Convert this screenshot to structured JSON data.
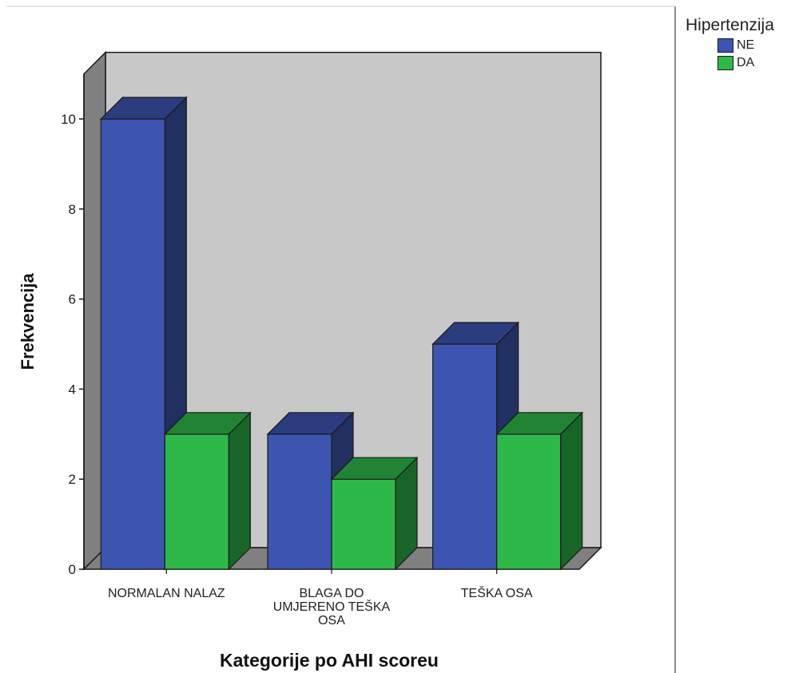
{
  "chart_data": {
    "type": "bar",
    "title": "",
    "xlabel": "Kategorije po AHI scoreu",
    "ylabel": "Frekvencija",
    "categories": [
      "NORMALAN NALAZ",
      "BLAGA DO UMJERENO TEŠKA OSA",
      "TEŠKA OSA"
    ],
    "category_lines": [
      [
        "NORMALAN NALAZ"
      ],
      [
        "BLAGA DO",
        "UMJERENO TEŠKA",
        "OSA"
      ],
      [
        "TEŠKA OSA"
      ]
    ],
    "series": [
      {
        "name": "NE",
        "values": [
          10,
          3,
          5
        ],
        "color": "#3d55b0"
      },
      {
        "name": "DA",
        "values": [
          3,
          2,
          3
        ],
        "color": "#2eb84a"
      }
    ],
    "yticks": [
      "0",
      "2",
      "4",
      "6",
      "8",
      "10"
    ],
    "ylim": [
      0,
      11
    ],
    "grid": false,
    "legend": {
      "title": "Hipertenzija",
      "position": "top-right"
    },
    "style": "3d-bars",
    "panel_color": "#c8c8c8"
  }
}
